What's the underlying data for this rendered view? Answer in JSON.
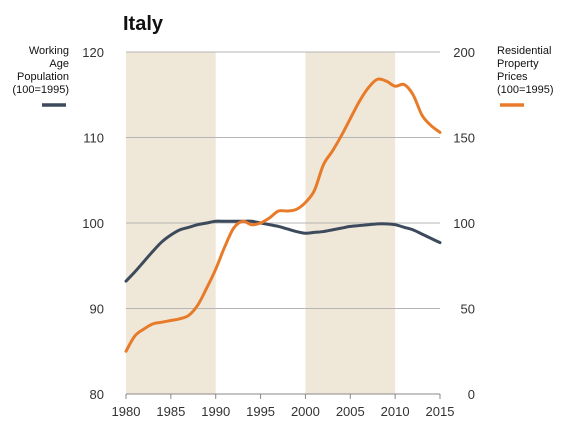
{
  "chart_data": {
    "type": "line",
    "title": "Italy",
    "x_range": [
      1980,
      2015
    ],
    "x_ticks": [
      "1980",
      "1985",
      "1990",
      "1995",
      "2000",
      "2005",
      "2010",
      "2015"
    ],
    "shaded_periods": [
      [
        1980,
        1990
      ],
      [
        2000,
        2010
      ]
    ],
    "grid": "horizontal",
    "left_axis": {
      "range": [
        80,
        120
      ],
      "ticks": [
        "80",
        "90",
        "100",
        "110",
        "120"
      ]
    },
    "right_axis": {
      "range": [
        0,
        200
      ],
      "ticks": [
        "0",
        "50",
        "100",
        "150",
        "200"
      ]
    },
    "colors": {
      "working_age": "#3d4a5c",
      "property_prices": "#e87b2a",
      "shading": "#efe8d8",
      "grid": "#b5b5b5"
    },
    "series": [
      {
        "name": "Working Age Population (100=1995)",
        "legend_lines": [
          "Working",
          "Age",
          "Population",
          "(100=1995)"
        ],
        "axis": "left",
        "color": "#3d4a5c",
        "x": [
          1980,
          1981,
          1982,
          1983,
          1984,
          1985,
          1986,
          1987,
          1988,
          1989,
          1990,
          1991,
          1992,
          1993,
          1994,
          1995,
          1996,
          1997,
          1998,
          1999,
          2000,
          2001,
          2002,
          2003,
          2004,
          2005,
          2006,
          2007,
          2008,
          2009,
          2010,
          2011,
          2012,
          2013,
          2014,
          2015
        ],
        "values": [
          93.2,
          94.3,
          95.5,
          96.7,
          97.8,
          98.6,
          99.2,
          99.5,
          99.8,
          100.0,
          100.2,
          100.2,
          100.2,
          100.2,
          100.2,
          100.0,
          99.8,
          99.6,
          99.3,
          99.0,
          98.8,
          98.9,
          99.0,
          99.2,
          99.4,
          99.6,
          99.7,
          99.8,
          99.9,
          99.9,
          99.8,
          99.5,
          99.2,
          98.7,
          98.2,
          97.7
        ]
      },
      {
        "name": "Residential Property Prices (100=1995)",
        "legend_lines": [
          "Residential",
          "Property",
          "Prices",
          "(100=1995)"
        ],
        "axis": "right",
        "color": "#e87b2a",
        "x": [
          1980,
          1981,
          1982,
          1983,
          1984,
          1985,
          1986,
          1987,
          1988,
          1989,
          1990,
          1991,
          1992,
          1993,
          1994,
          1995,
          1996,
          1997,
          1998,
          1999,
          2000,
          2001,
          2002,
          2003,
          2004,
          2005,
          2006,
          2007,
          2008,
          2009,
          2010,
          2011,
          2012,
          2013,
          2014,
          2015
        ],
        "values": [
          25,
          34,
          38,
          41,
          42,
          43,
          44,
          46,
          52,
          62,
          73,
          86,
          97,
          101,
          99,
          100,
          103,
          107,
          107,
          108,
          112,
          119,
          134,
          142,
          151,
          161,
          171,
          179,
          184,
          183,
          180,
          181,
          175,
          163,
          157,
          153
        ]
      }
    ]
  }
}
